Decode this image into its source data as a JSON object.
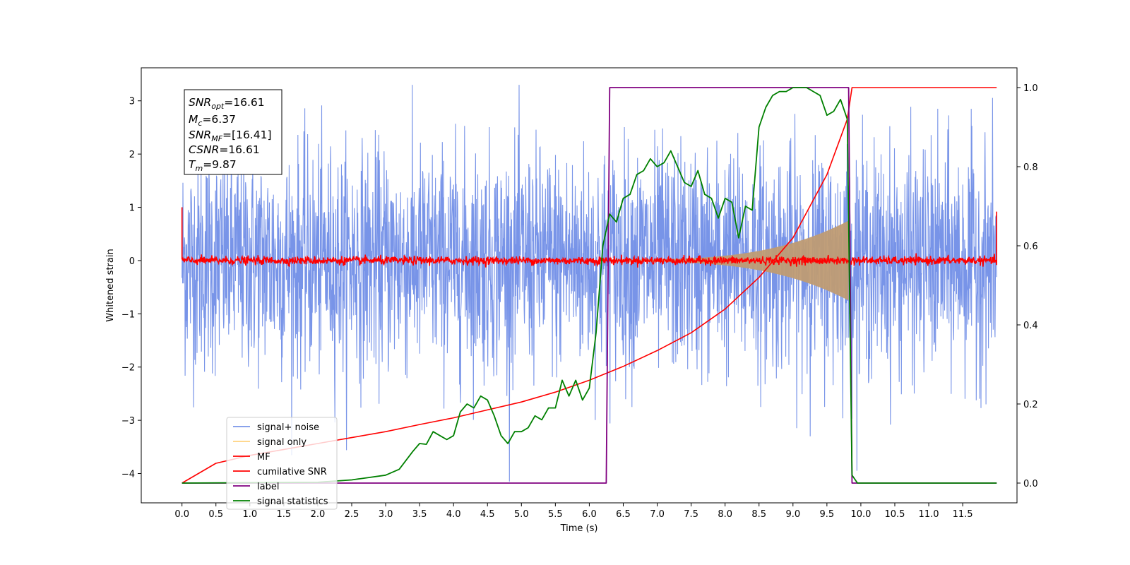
{
  "chart_data": {
    "type": "line",
    "xlabel": "Time (s)",
    "ylabel_left": "Whitened strain",
    "ylabel_right": "",
    "xlim": [
      -0.6,
      12.3
    ],
    "ylim_left": [
      -4.55,
      3.62
    ],
    "ylim_right": [
      -0.05,
      1.05
    ],
    "x_ticks": [
      0.0,
      0.5,
      1.0,
      1.5,
      2.0,
      2.5,
      3.0,
      3.5,
      4.0,
      4.5,
      5.0,
      5.5,
      6.0,
      6.5,
      7.0,
      7.5,
      8.0,
      8.5,
      9.0,
      9.5,
      10.0,
      10.5,
      11.0,
      11.5
    ],
    "x_tick_labels": [
      "0.0",
      "0.5",
      "1.0",
      "1.5",
      "2.0",
      "2.5",
      "3.0",
      "3.5",
      "4.0",
      "4.5",
      "5.0",
      "5.5",
      "6.0",
      "6.5",
      "7.0",
      "7.5",
      "8.0",
      "8.5",
      "9.0",
      "9.5",
      "10.0",
      "10.5",
      "11.0",
      "11.5"
    ],
    "y_left_ticks": [
      3,
      2,
      1,
      0,
      -1,
      -2,
      -3,
      -4
    ],
    "y_left_tick_labels": [
      "3",
      "2",
      "1",
      "0",
      "−1",
      "−2",
      "−3",
      "−4"
    ],
    "y_right_ticks": [
      1.0,
      0.8,
      0.6,
      0.4,
      0.2,
      0.0
    ],
    "y_right_tick_labels": [
      "1.0",
      "0.8",
      "0.6",
      "0.4",
      "0.2",
      "0.0"
    ],
    "grid": false,
    "legend_position": "lower-left",
    "legend": [
      "signal+ noise",
      "signal only",
      "MF",
      "cumilative SNR",
      "label",
      "signal statistics"
    ],
    "annotation": {
      "snr_opt": {
        "name": "SNR",
        "sub": "opt",
        "value": "=16.61"
      },
      "mc": {
        "name": "M",
        "sub": "c",
        "value": "=6.37"
      },
      "snr_mf": {
        "name": "SNR",
        "sub": "MF",
        "value": "=[16.41]"
      },
      "csnr": {
        "name": "CSNR",
        "sub": "",
        "value": "=16.61"
      },
      "tm": {
        "name": "T",
        "sub": "m",
        "value": "=9.87"
      }
    },
    "series": [
      {
        "name": "signal+ noise",
        "axis": "left",
        "color": "#7894e8",
        "description_range": [
          -4.15,
          3.3
        ],
        "t_range": [
          0.0,
          12.0
        ]
      },
      {
        "name": "signal only",
        "axis": "left",
        "color": "#bf9b73",
        "t_range": [
          6.3,
          9.82
        ],
        "amplitude_start": 0.02,
        "amplitude_end": 0.75
      },
      {
        "name": "MF",
        "axis": "left",
        "color": "#ff0000",
        "t_range": [
          0.0,
          12.0
        ],
        "level": 0.0,
        "noise": 0.07
      },
      {
        "name": "cumilative SNR",
        "axis": "right",
        "color": "#ff0000",
        "x": [
          0.0,
          0.5,
          1.0,
          1.5,
          2.0,
          2.5,
          3.0,
          3.5,
          4.0,
          4.5,
          5.0,
          5.5,
          6.0,
          6.5,
          7.0,
          7.5,
          8.0,
          8.5,
          9.0,
          9.5,
          9.8,
          9.87,
          12.0
        ],
        "values": [
          0.0,
          0.05,
          0.07,
          0.085,
          0.1,
          0.115,
          0.13,
          0.148,
          0.165,
          0.185,
          0.205,
          0.23,
          0.26,
          0.295,
          0.335,
          0.38,
          0.44,
          0.52,
          0.62,
          0.78,
          0.92,
          1.0,
          1.0
        ]
      },
      {
        "name": "label",
        "axis": "right",
        "color": "#800080",
        "x": [
          0.0,
          6.25,
          6.3,
          9.82,
          9.87,
          12.0
        ],
        "values": [
          0.0,
          0.0,
          1.0,
          1.0,
          0.0,
          0.0
        ]
      },
      {
        "name": "signal statistics",
        "axis": "right",
        "color": "#008000",
        "x": [
          0.0,
          2.0,
          2.5,
          3.0,
          3.2,
          3.4,
          3.5,
          3.6,
          3.7,
          3.8,
          3.9,
          4.0,
          4.1,
          4.2,
          4.3,
          4.4,
          4.5,
          4.6,
          4.7,
          4.8,
          4.9,
          5.0,
          5.1,
          5.2,
          5.3,
          5.4,
          5.5,
          5.6,
          5.7,
          5.8,
          5.9,
          6.0,
          6.1,
          6.2,
          6.3,
          6.4,
          6.5,
          6.6,
          6.7,
          6.8,
          6.9,
          7.0,
          7.1,
          7.2,
          7.3,
          7.4,
          7.5,
          7.6,
          7.7,
          7.8,
          7.9,
          8.0,
          8.1,
          8.2,
          8.3,
          8.4,
          8.5,
          8.6,
          8.7,
          8.8,
          8.9,
          9.0,
          9.1,
          9.2,
          9.3,
          9.4,
          9.5,
          9.6,
          9.7,
          9.8,
          9.87,
          9.95,
          12.0
        ],
        "values": [
          0.0,
          0.002,
          0.008,
          0.02,
          0.035,
          0.08,
          0.1,
          0.098,
          0.13,
          0.12,
          0.11,
          0.12,
          0.18,
          0.2,
          0.19,
          0.22,
          0.21,
          0.17,
          0.12,
          0.1,
          0.13,
          0.13,
          0.14,
          0.17,
          0.16,
          0.19,
          0.19,
          0.26,
          0.22,
          0.26,
          0.21,
          0.24,
          0.38,
          0.6,
          0.68,
          0.66,
          0.72,
          0.73,
          0.78,
          0.79,
          0.82,
          0.8,
          0.81,
          0.84,
          0.8,
          0.76,
          0.75,
          0.79,
          0.73,
          0.72,
          0.67,
          0.72,
          0.71,
          0.62,
          0.7,
          0.69,
          0.9,
          0.95,
          0.98,
          0.99,
          0.99,
          1.0,
          1.0,
          1.0,
          0.99,
          0.98,
          0.93,
          0.94,
          0.97,
          0.92,
          0.02,
          0.0,
          0.0
        ]
      }
    ]
  }
}
